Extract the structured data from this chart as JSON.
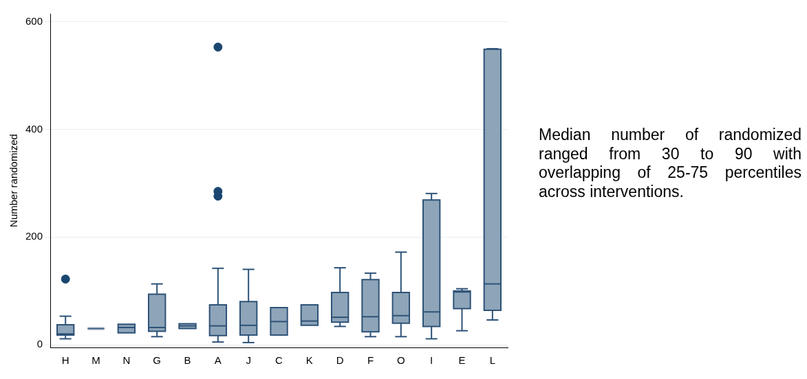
{
  "chart_data": {
    "type": "box",
    "ylabel": "Number randomized",
    "categories": [
      "H",
      "M",
      "N",
      "G",
      "B",
      "A",
      "J",
      "C",
      "K",
      "D",
      "F",
      "O",
      "I",
      "E",
      "L"
    ],
    "boxes": [
      {
        "low": 11,
        "q1": 18,
        "median": 20,
        "q3": 37,
        "high": 53,
        "outliers": [
          122
        ]
      },
      {
        "low": 30,
        "q1": 30,
        "median": 30,
        "q3": 30,
        "high": 30
      },
      {
        "low": 22,
        "q1": 22,
        "median": 32,
        "q3": 38,
        "high": 38
      },
      {
        "low": 15,
        "q1": 25,
        "median": 32,
        "q3": 94,
        "high": 113
      },
      {
        "low": 30,
        "q1": 30,
        "median": 35,
        "q3": 39,
        "high": 39
      },
      {
        "low": 5,
        "q1": 17,
        "median": 35,
        "q3": 74,
        "high": 142,
        "outliers": [
          553,
          285,
          276
        ]
      },
      {
        "low": 4,
        "q1": 18,
        "median": 36,
        "q3": 80,
        "high": 140
      },
      {
        "low": 18,
        "q1": 18,
        "median": 43,
        "q3": 69,
        "high": 69
      },
      {
        "low": 36,
        "q1": 36,
        "median": 44,
        "q3": 74,
        "high": 74
      },
      {
        "low": 34,
        "q1": 42,
        "median": 51,
        "q3": 97,
        "high": 143
      },
      {
        "low": 15,
        "q1": 24,
        "median": 52,
        "q3": 121,
        "high": 133
      },
      {
        "low": 15,
        "q1": 40,
        "median": 54,
        "q3": 97,
        "high": 172
      },
      {
        "low": 11,
        "q1": 34,
        "median": 61,
        "q3": 269,
        "high": 281
      },
      {
        "low": 26,
        "q1": 67,
        "median": 98,
        "q3": 100,
        "high": 104
      },
      {
        "low": 46,
        "q1": 64,
        "median": 113,
        "q3": 549,
        "high": 550
      }
    ],
    "color": "#8ea4b8",
    "ylim": [
      -5,
      615
    ],
    "yticks": [
      0,
      200,
      400,
      600
    ],
    "grid": "y",
    "legend": false,
    "annotations": [
      "Median number of randomized ranged from 30 to 90 with overlapping of 25-75 percentiles across interventions."
    ]
  }
}
